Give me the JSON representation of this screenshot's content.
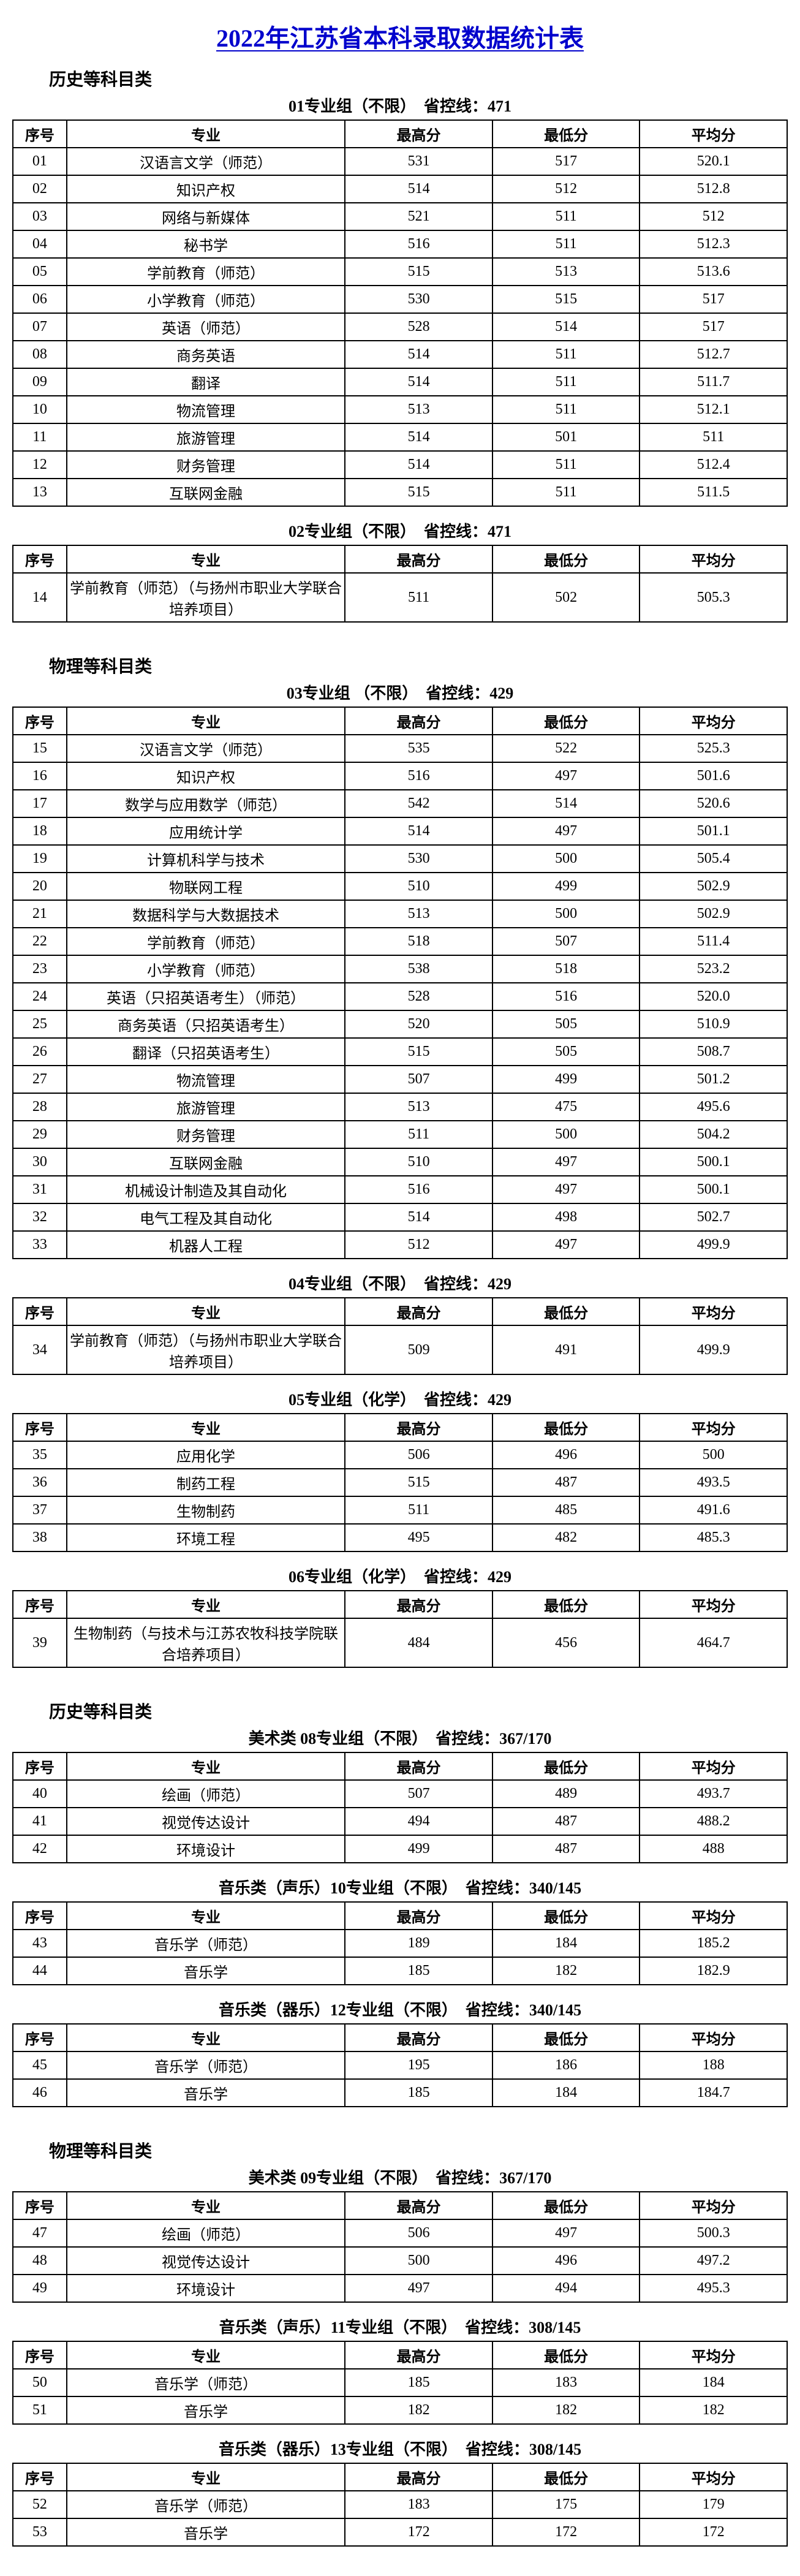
{
  "title": "2022年江苏省本科录取数据统计表",
  "columns": {
    "idx": "序号",
    "major": "专业",
    "high": "最高分",
    "low": "最低分",
    "avg": "平均分"
  },
  "categories": {
    "history": "历史等科目类",
    "physics": "物理等科目类"
  },
  "sections": [
    {
      "category": "历史等科目类",
      "header": "01专业组（不限）　省控线：471",
      "rows": [
        [
          "01",
          "汉语言文学（师范）",
          "531",
          "517",
          "520.1"
        ],
        [
          "02",
          "知识产权",
          "514",
          "512",
          "512.8"
        ],
        [
          "03",
          "网络与新媒体",
          "521",
          "511",
          "512"
        ],
        [
          "04",
          "秘书学",
          "516",
          "511",
          "512.3"
        ],
        [
          "05",
          "学前教育（师范）",
          "515",
          "513",
          "513.6"
        ],
        [
          "06",
          "小学教育（师范）",
          "530",
          "515",
          "517"
        ],
        [
          "07",
          "英语（师范）",
          "528",
          "514",
          "517"
        ],
        [
          "08",
          "商务英语",
          "514",
          "511",
          "512.7"
        ],
        [
          "09",
          "翻译",
          "514",
          "511",
          "511.7"
        ],
        [
          "10",
          "物流管理",
          "513",
          "511",
          "512.1"
        ],
        [
          "11",
          "旅游管理",
          "514",
          "501",
          "511"
        ],
        [
          "12",
          "财务管理",
          "514",
          "511",
          "512.4"
        ],
        [
          "13",
          "互联网金融",
          "515",
          "511",
          "511.5"
        ]
      ]
    },
    {
      "header": "02专业组（不限）　省控线：471",
      "rows": [
        [
          "14",
          "学前教育（师范）（与扬州市职业大学联合培养项目）",
          "511",
          "502",
          "505.3"
        ]
      ]
    },
    {
      "category": "物理等科目类",
      "header": "03专业组 （不限）　省控线：429",
      "rows": [
        [
          "15",
          "汉语言文学（师范）",
          "535",
          "522",
          "525.3"
        ],
        [
          "16",
          "知识产权",
          "516",
          "497",
          "501.6"
        ],
        [
          "17",
          "数学与应用数学（师范）",
          "542",
          "514",
          "520.6"
        ],
        [
          "18",
          "应用统计学",
          "514",
          "497",
          "501.1"
        ],
        [
          "19",
          "计算机科学与技术",
          "530",
          "500",
          "505.4"
        ],
        [
          "20",
          "物联网工程",
          "510",
          "499",
          "502.9"
        ],
        [
          "21",
          "数据科学与大数据技术",
          "513",
          "500",
          "502.9"
        ],
        [
          "22",
          "学前教育（师范）",
          "518",
          "507",
          "511.4"
        ],
        [
          "23",
          "小学教育（师范）",
          "538",
          "518",
          "523.2"
        ],
        [
          "24",
          "英语（只招英语考生）（师范）",
          "528",
          "516",
          "520.0"
        ],
        [
          "25",
          "商务英语（只招英语考生）",
          "520",
          "505",
          "510.9"
        ],
        [
          "26",
          "翻译（只招英语考生）",
          "515",
          "505",
          "508.7"
        ],
        [
          "27",
          "物流管理",
          "507",
          "499",
          "501.2"
        ],
        [
          "28",
          "旅游管理",
          "513",
          "475",
          "495.6"
        ],
        [
          "29",
          "财务管理",
          "511",
          "500",
          "504.2"
        ],
        [
          "30",
          "互联网金融",
          "510",
          "497",
          "500.1"
        ],
        [
          "31",
          "机械设计制造及其自动化",
          "516",
          "497",
          "500.1"
        ],
        [
          "32",
          "电气工程及其自动化",
          "514",
          "498",
          "502.7"
        ],
        [
          "33",
          "机器人工程",
          "512",
          "497",
          "499.9"
        ]
      ]
    },
    {
      "header": "04专业组（不限）　省控线：429",
      "rows": [
        [
          "34",
          "学前教育（师范）（与扬州市职业大学联合培养项目）",
          "509",
          "491",
          "499.9"
        ]
      ]
    },
    {
      "header": "05专业组（化学）　省控线：429",
      "rows": [
        [
          "35",
          "应用化学",
          "506",
          "496",
          "500"
        ],
        [
          "36",
          "制药工程",
          "515",
          "487",
          "493.5"
        ],
        [
          "37",
          "生物制药",
          "511",
          "485",
          "491.6"
        ],
        [
          "38",
          "环境工程",
          "495",
          "482",
          "485.3"
        ]
      ]
    },
    {
      "header": "06专业组（化学）　省控线：429",
      "rows": [
        [
          "39",
          "生物制药（与技术与江苏农牧科技学院联合培养项目）",
          "484",
          "456",
          "464.7"
        ]
      ]
    },
    {
      "category": "历史等科目类",
      "header": "美术类 08专业组（不限）　省控线：367/170",
      "rows": [
        [
          "40",
          "绘画（师范）",
          "507",
          "489",
          "493.7"
        ],
        [
          "41",
          "视觉传达设计",
          "494",
          "487",
          "488.2"
        ],
        [
          "42",
          "环境设计",
          "499",
          "487",
          "488"
        ]
      ]
    },
    {
      "header": "音乐类（声乐）10专业组（不限）　省控线：340/145",
      "rows": [
        [
          "43",
          "音乐学（师范）",
          "189",
          "184",
          "185.2"
        ],
        [
          "44",
          "音乐学",
          "185",
          "182",
          "182.9"
        ]
      ]
    },
    {
      "header": "音乐类（器乐）12专业组（不限）　省控线：340/145",
      "rows": [
        [
          "45",
          "音乐学（师范）",
          "195",
          "186",
          "188"
        ],
        [
          "46",
          "音乐学",
          "185",
          "184",
          "184.7"
        ]
      ]
    },
    {
      "category": "物理等科目类",
      "header": "美术类 09专业组（不限）　省控线：367/170",
      "rows": [
        [
          "47",
          "绘画（师范）",
          "506",
          "497",
          "500.3"
        ],
        [
          "48",
          "视觉传达设计",
          "500",
          "496",
          "497.2"
        ],
        [
          "49",
          "环境设计",
          "497",
          "494",
          "495.3"
        ]
      ]
    },
    {
      "header": "音乐类（声乐）11专业组（不限）　省控线：308/145",
      "rows": [
        [
          "50",
          "音乐学（师范）",
          "185",
          "183",
          "184"
        ],
        [
          "51",
          "音乐学",
          "182",
          "182",
          "182"
        ]
      ]
    },
    {
      "header": "音乐类（器乐）13专业组（不限）　省控线：308/145",
      "rows": [
        [
          "52",
          "音乐学（师范）",
          "183",
          "175",
          "179"
        ],
        [
          "53",
          "音乐学",
          "172",
          "172",
          "172"
        ]
      ]
    }
  ]
}
